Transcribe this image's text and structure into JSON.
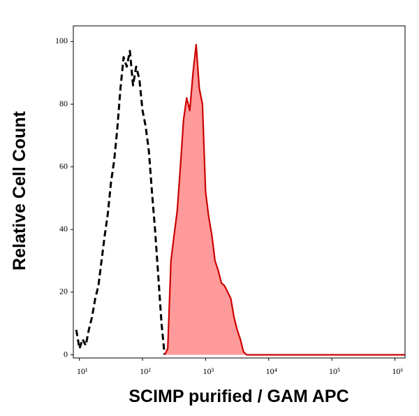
{
  "chart_data": {
    "type": "line",
    "xlabel": "SCIMP purified / GAM APC",
    "ylabel": "Relative Cell Count",
    "xscale": "log",
    "xlim": [
      8,
      1450000
    ],
    "ylim": [
      -1,
      105
    ],
    "xticks": [
      {
        "value": 10,
        "label": "10¹"
      },
      {
        "value": 100,
        "label": "10²"
      },
      {
        "value": 1000,
        "label": "10³"
      },
      {
        "value": 10000,
        "label": "10⁴"
      },
      {
        "value": 100000,
        "label": "10⁵"
      },
      {
        "value": 1000000,
        "label": "10⁶"
      }
    ],
    "yticks": [
      0,
      20,
      40,
      60,
      80,
      100
    ],
    "x": [
      8.9,
      10,
      11.2,
      12.6,
      14.1,
      15.8,
      17.8,
      20,
      22.4,
      25.1,
      28.2,
      31.6,
      35.5,
      39.8,
      44.7,
      50.1,
      56.2,
      63.1,
      70.8,
      79.4,
      89.1,
      100,
      112,
      126,
      141,
      158,
      178,
      200,
      224,
      251,
      282,
      316,
      355,
      398,
      447,
      501,
      562,
      631,
      708,
      794,
      891,
      1000,
      1120,
      1260,
      1410,
      1580,
      1780,
      2000,
      2240,
      2510,
      2820,
      3160,
      3550,
      3980,
      4470,
      10000,
      100000,
      1450000
    ],
    "series": [
      {
        "color": "#000000",
        "dashed": true,
        "values": [
          8,
          2,
          5,
          3,
          8,
          12,
          18,
          22,
          30,
          38,
          45,
          55,
          62,
          72,
          85,
          95,
          92,
          97,
          86,
          92,
          88,
          78,
          73,
          65,
          52,
          40,
          25,
          10,
          0,
          null,
          null,
          null,
          null,
          null,
          null,
          null,
          null,
          null,
          null,
          null,
          null,
          null,
          null,
          null,
          null,
          null,
          null,
          null,
          null,
          null,
          null,
          null,
          null,
          null,
          null,
          null,
          null,
          null
        ]
      },
      {
        "color": "#cc0000",
        "fill_color": "#ff9a9a",
        "values": [
          null,
          null,
          null,
          null,
          null,
          null,
          null,
          null,
          null,
          null,
          null,
          null,
          null,
          null,
          null,
          null,
          null,
          null,
          null,
          null,
          null,
          null,
          null,
          null,
          null,
          null,
          null,
          null,
          0,
          2,
          30,
          38,
          46,
          60,
          75,
          82,
          78,
          90,
          99,
          85,
          80,
          52,
          44,
          38,
          30,
          27,
          23,
          22,
          20,
          18,
          12,
          8,
          5,
          1,
          0,
          0,
          0,
          0
        ]
      }
    ]
  }
}
